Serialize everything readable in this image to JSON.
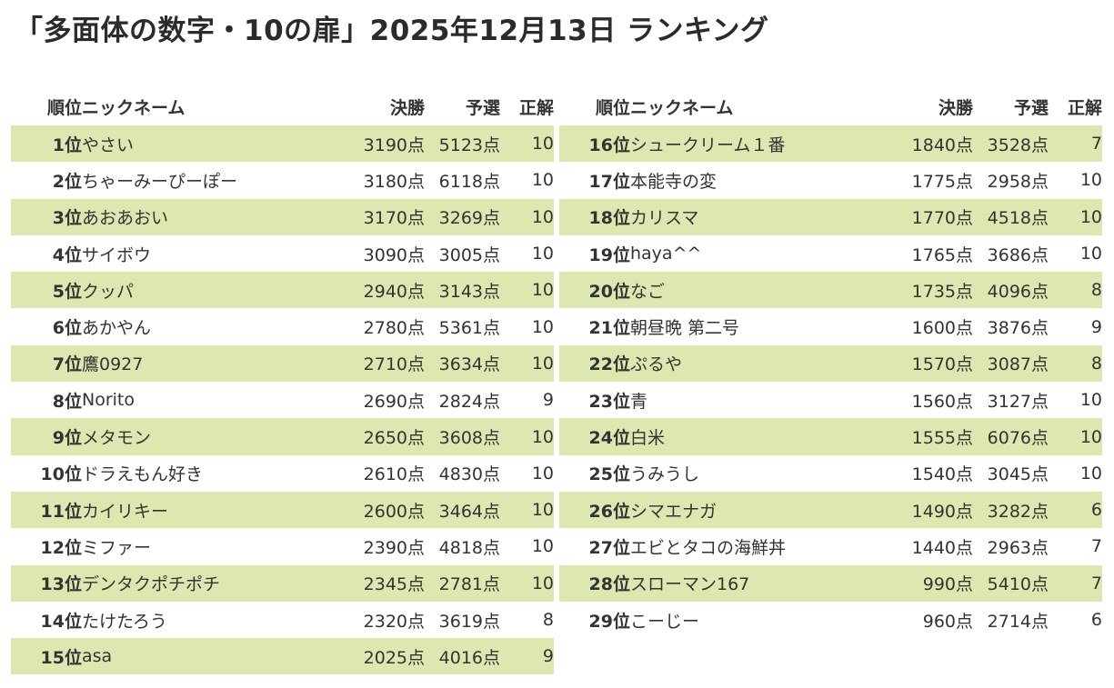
{
  "page": {
    "title": "「多面体の数字・10の扉」2025年12月13日 ランキング"
  },
  "columns": {
    "rank": "順位",
    "name": "ニックネーム",
    "final": "決勝",
    "prelim": "予選",
    "correct": "正解"
  },
  "colors": {
    "row_highlight": "#dde8b0",
    "rank_text": "#777777"
  },
  "left_rows": [
    {
      "rank": "1位",
      "name": "やさい",
      "final": "3190点",
      "prelim": "5123点",
      "correct": "10"
    },
    {
      "rank": "2位",
      "name": "ちゃーみーぴーぽー",
      "final": "3180点",
      "prelim": "6118点",
      "correct": "10"
    },
    {
      "rank": "3位",
      "name": "あおあおい",
      "final": "3170点",
      "prelim": "3269点",
      "correct": "10"
    },
    {
      "rank": "4位",
      "name": "サイボウ",
      "final": "3090点",
      "prelim": "3005点",
      "correct": "10"
    },
    {
      "rank": "5位",
      "name": "クッパ",
      "final": "2940点",
      "prelim": "3143点",
      "correct": "10"
    },
    {
      "rank": "6位",
      "name": "あかやん",
      "final": "2780点",
      "prelim": "5361点",
      "correct": "10"
    },
    {
      "rank": "7位",
      "name": "鷹0927",
      "final": "2710点",
      "prelim": "3634点",
      "correct": "10"
    },
    {
      "rank": "8位",
      "name": "Norito",
      "final": "2690点",
      "prelim": "2824点",
      "correct": "9"
    },
    {
      "rank": "9位",
      "name": "メタモン",
      "final": "2650点",
      "prelim": "3608点",
      "correct": "10"
    },
    {
      "rank": "10位",
      "name": "ドラえもん好き",
      "final": "2610点",
      "prelim": "4830点",
      "correct": "10"
    },
    {
      "rank": "11位",
      "name": "カイリキー",
      "final": "2600点",
      "prelim": "3464点",
      "correct": "10"
    },
    {
      "rank": "12位",
      "name": "ミファー",
      "final": "2390点",
      "prelim": "4818点",
      "correct": "10"
    },
    {
      "rank": "13位",
      "name": "デンタクポチポチ",
      "final": "2345点",
      "prelim": "2781点",
      "correct": "10"
    },
    {
      "rank": "14位",
      "name": "たけたろう",
      "final": "2320点",
      "prelim": "3619点",
      "correct": "8"
    },
    {
      "rank": "15位",
      "name": "asa",
      "final": "2025点",
      "prelim": "4016点",
      "correct": "9"
    }
  ],
  "right_rows": [
    {
      "rank": "16位",
      "name": "シュークリーム１番",
      "final": "1840点",
      "prelim": "3528点",
      "correct": "7"
    },
    {
      "rank": "17位",
      "name": "本能寺の変",
      "final": "1775点",
      "prelim": "2958点",
      "correct": "10"
    },
    {
      "rank": "18位",
      "name": "カリスマ",
      "final": "1770点",
      "prelim": "4518点",
      "correct": "10"
    },
    {
      "rank": "19位",
      "name": "haya^^",
      "final": "1765点",
      "prelim": "3686点",
      "correct": "10"
    },
    {
      "rank": "20位",
      "name": "なご",
      "final": "1735点",
      "prelim": "4096点",
      "correct": "8"
    },
    {
      "rank": "21位",
      "name": "朝昼晩 第二号",
      "final": "1600点",
      "prelim": "3876点",
      "correct": "9"
    },
    {
      "rank": "22位",
      "name": "ぷるや",
      "final": "1570点",
      "prelim": "3087点",
      "correct": "8"
    },
    {
      "rank": "23位",
      "name": "青",
      "final": "1560点",
      "prelim": "3127点",
      "correct": "10"
    },
    {
      "rank": "24位",
      "name": "白米",
      "final": "1555点",
      "prelim": "6076点",
      "correct": "10"
    },
    {
      "rank": "25位",
      "name": "うみうし",
      "final": "1540点",
      "prelim": "3045点",
      "correct": "10"
    },
    {
      "rank": "26位",
      "name": "シマエナガ",
      "final": "1490点",
      "prelim": "3282点",
      "correct": "6"
    },
    {
      "rank": "27位",
      "name": "エビとタコの海鮮丼",
      "final": "1440点",
      "prelim": "2963点",
      "correct": "7"
    },
    {
      "rank": "28位",
      "name": "スローマン167",
      "final": "990点",
      "prelim": "5410点",
      "correct": "7"
    },
    {
      "rank": "29位",
      "name": "こーじー",
      "final": "960点",
      "prelim": "2714点",
      "correct": "6"
    }
  ]
}
